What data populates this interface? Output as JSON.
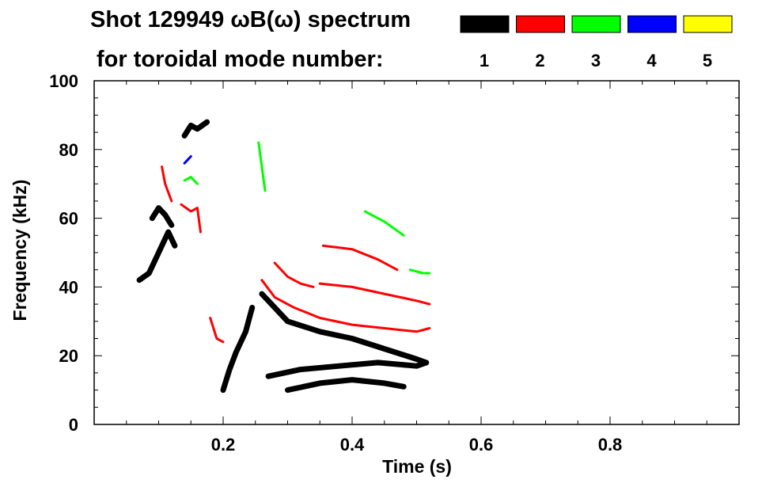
{
  "title_line1": "Shot 129949 ωB(ω) spectrum",
  "title_line2": "for toroidal mode number:",
  "chart_data": {
    "type": "scatter",
    "xlabel": "Time (s)",
    "ylabel": "Frequency (kHz)",
    "xlim": [
      0.0,
      1.0
    ],
    "ylim": [
      0,
      100
    ],
    "xticks": [
      0.2,
      0.4,
      0.6,
      0.8
    ],
    "xtick_labels": [
      "0.2",
      "0.4",
      "0.6",
      "0.8"
    ],
    "yticks": [
      0,
      20,
      40,
      60,
      80,
      100
    ],
    "ytick_labels": [
      "0",
      "20",
      "40",
      "60",
      "80",
      "100"
    ],
    "legend_position": "top-right",
    "legend": [
      {
        "label": "1",
        "color": "#000000"
      },
      {
        "label": "2",
        "color": "#ff0000"
      },
      {
        "label": "3",
        "color": "#00ff00"
      },
      {
        "label": "4",
        "color": "#0000ff"
      },
      {
        "label": "5",
        "color": "#ffff00"
      }
    ],
    "series": [
      {
        "name": "1",
        "color": "#000000",
        "segments": [
          {
            "x": [
              0.07,
              0.085,
              0.1,
              0.115,
              0.125
            ],
            "y": [
              42,
              44,
              50,
              56,
              52
            ]
          },
          {
            "x": [
              0.09,
              0.1,
              0.11,
              0.12
            ],
            "y": [
              60,
              63,
              61,
              58
            ]
          },
          {
            "x": [
              0.14,
              0.15,
              0.16,
              0.175
            ],
            "y": [
              84,
              87,
              86,
              88
            ]
          },
          {
            "x": [
              0.2,
              0.21,
              0.22,
              0.235,
              0.245
            ],
            "y": [
              10,
              16,
              21,
              27,
              34
            ]
          },
          {
            "x": [
              0.26,
              0.3,
              0.35,
              0.4,
              0.45,
              0.5,
              0.515
            ],
            "y": [
              38,
              30,
              27,
              25,
              22,
              19,
              18
            ]
          },
          {
            "x": [
              0.27,
              0.32,
              0.38,
              0.44,
              0.5,
              0.515
            ],
            "y": [
              14,
              16,
              17,
              18,
              17,
              18
            ]
          },
          {
            "x": [
              0.3,
              0.35,
              0.4,
              0.45,
              0.48
            ],
            "y": [
              10,
              12,
              13,
              12,
              11
            ]
          }
        ]
      },
      {
        "name": "2",
        "color": "#ff0000",
        "segments": [
          {
            "x": [
              0.105,
              0.11,
              0.12
            ],
            "y": [
              75,
              70,
              65
            ]
          },
          {
            "x": [
              0.135,
              0.15,
              0.16,
              0.165
            ],
            "y": [
              64,
              62,
              63,
              56
            ]
          },
          {
            "x": [
              0.18,
              0.185,
              0.19,
              0.2
            ],
            "y": [
              31,
              28,
              25,
              24
            ]
          },
          {
            "x": [
              0.26,
              0.28,
              0.31,
              0.35,
              0.4,
              0.45,
              0.5,
              0.52
            ],
            "y": [
              42,
              37,
              34,
              31,
              29,
              28,
              27,
              28
            ]
          },
          {
            "x": [
              0.28,
              0.3,
              0.32,
              0.34
            ],
            "y": [
              47,
              43,
              41,
              40
            ]
          },
          {
            "x": [
              0.35,
              0.4,
              0.45,
              0.5,
              0.52
            ],
            "y": [
              41,
              40,
              38,
              36,
              35
            ]
          },
          {
            "x": [
              0.355,
              0.4,
              0.44,
              0.47
            ],
            "y": [
              52,
              51,
              48,
              45
            ]
          }
        ]
      },
      {
        "name": "3",
        "color": "#00ff00",
        "segments": [
          {
            "x": [
              0.14,
              0.15,
              0.16
            ],
            "y": [
              71,
              72,
              70
            ]
          },
          {
            "x": [
              0.255,
              0.26,
              0.265
            ],
            "y": [
              82,
              75,
              68
            ]
          },
          {
            "x": [
              0.42,
              0.45,
              0.48
            ],
            "y": [
              62,
              59,
              55
            ]
          },
          {
            "x": [
              0.49,
              0.51,
              0.52
            ],
            "y": [
              45,
              44,
              44
            ]
          }
        ]
      },
      {
        "name": "4",
        "color": "#0000ff",
        "segments": [
          {
            "x": [
              0.14,
              0.145,
              0.15
            ],
            "y": [
              76,
              77,
              78
            ]
          }
        ]
      }
    ]
  }
}
